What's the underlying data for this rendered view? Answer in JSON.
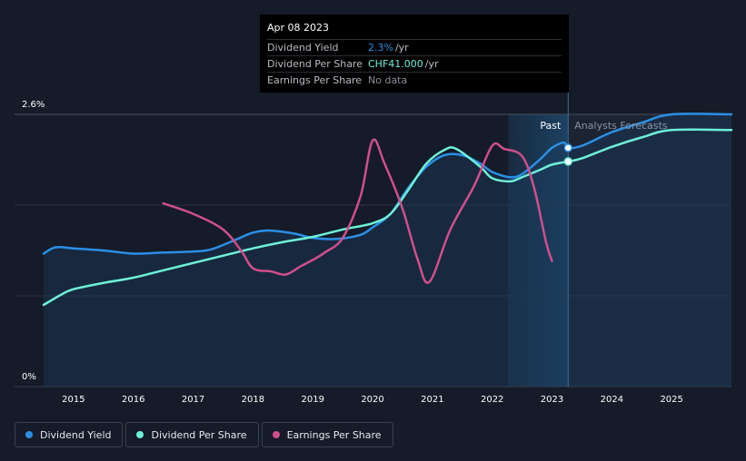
{
  "tooltip": {
    "date": "Apr 08 2023",
    "rows": [
      {
        "label": "Dividend Yield",
        "value": "2.3%",
        "unit": "/yr",
        "color": "#2b8fe6"
      },
      {
        "label": "Dividend Per Share",
        "value": "CHF41.000",
        "unit": "/yr",
        "color": "#6ef0d8"
      },
      {
        "label": "Earnings Per Share",
        "value": "No data",
        "unit": "",
        "color": "#8a8f98"
      }
    ]
  },
  "regions": {
    "past_label": "Past",
    "forecast_label": "Analysts Forecasts"
  },
  "legend": [
    {
      "label": "Dividend Yield",
      "color": "#2b8fe6"
    },
    {
      "label": "Dividend Per Share",
      "color": "#6ef0d8"
    },
    {
      "label": "Earnings Per Share",
      "color": "#d04e8c"
    }
  ],
  "chart_data": {
    "type": "line",
    "title": "",
    "xlabel": "",
    "ylabel": "",
    "y_unit": "%",
    "ylim": [
      0,
      2.6
    ],
    "xlim": [
      2014.5,
      2026.0
    ],
    "y_tick_labels": [
      {
        "value": 2.6,
        "label": "2.6%"
      },
      {
        "value": 0,
        "label": "0%"
      }
    ],
    "x_ticks": [
      2015,
      2016,
      2017,
      2018,
      2019,
      2020,
      2021,
      2022,
      2023,
      2024,
      2025
    ],
    "grid": true,
    "legend_position": "bottom-left",
    "past_until": 2023.27,
    "highlight_from": 2022.27,
    "series": [
      {
        "name": "Dividend Yield",
        "color": "#2b8fe6",
        "points": [
          [
            2014.5,
            1.27
          ],
          [
            2014.7,
            1.33
          ],
          [
            2015.0,
            1.32
          ],
          [
            2015.5,
            1.3
          ],
          [
            2016.0,
            1.27
          ],
          [
            2016.5,
            1.28
          ],
          [
            2017.0,
            1.29
          ],
          [
            2017.3,
            1.31
          ],
          [
            2017.7,
            1.4
          ],
          [
            2018.0,
            1.47
          ],
          [
            2018.3,
            1.49
          ],
          [
            2018.7,
            1.46
          ],
          [
            2019.0,
            1.42
          ],
          [
            2019.4,
            1.41
          ],
          [
            2019.8,
            1.45
          ],
          [
            2020.0,
            1.52
          ],
          [
            2020.3,
            1.65
          ],
          [
            2020.6,
            1.9
          ],
          [
            2020.9,
            2.1
          ],
          [
            2021.2,
            2.21
          ],
          [
            2021.5,
            2.21
          ],
          [
            2021.8,
            2.13
          ],
          [
            2022.0,
            2.05
          ],
          [
            2022.3,
            2.0
          ],
          [
            2022.5,
            2.03
          ],
          [
            2022.8,
            2.17
          ],
          [
            2023.0,
            2.28
          ],
          [
            2023.2,
            2.33
          ],
          [
            2023.27,
            2.28
          ],
          [
            2023.5,
            2.3
          ],
          [
            2024.0,
            2.43
          ],
          [
            2024.5,
            2.52
          ],
          [
            2025.0,
            2.6
          ],
          [
            2026.0,
            2.6
          ]
        ]
      },
      {
        "name": "Dividend Per Share",
        "color": "#6ef0d8",
        "points": [
          [
            2014.5,
            0.78
          ],
          [
            2014.8,
            0.88
          ],
          [
            2015.0,
            0.93
          ],
          [
            2015.5,
            0.99
          ],
          [
            2016.0,
            1.04
          ],
          [
            2016.5,
            1.11
          ],
          [
            2017.0,
            1.18
          ],
          [
            2017.5,
            1.25
          ],
          [
            2018.0,
            1.32
          ],
          [
            2018.5,
            1.38
          ],
          [
            2019.0,
            1.43
          ],
          [
            2019.5,
            1.5
          ],
          [
            2020.0,
            1.56
          ],
          [
            2020.3,
            1.65
          ],
          [
            2020.6,
            1.88
          ],
          [
            2020.9,
            2.13
          ],
          [
            2021.2,
            2.26
          ],
          [
            2021.4,
            2.27
          ],
          [
            2021.8,
            2.1
          ],
          [
            2022.0,
            1.99
          ],
          [
            2022.3,
            1.96
          ],
          [
            2022.5,
            2.0
          ],
          [
            2022.8,
            2.07
          ],
          [
            2023.0,
            2.12
          ],
          [
            2023.27,
            2.15
          ],
          [
            2023.5,
            2.18
          ],
          [
            2024.0,
            2.29
          ],
          [
            2024.5,
            2.38
          ],
          [
            2025.0,
            2.45
          ],
          [
            2026.0,
            2.45
          ]
        ]
      },
      {
        "name": "Earnings Per Share",
        "color": "#d04e8c",
        "points": [
          [
            2016.5,
            1.75
          ],
          [
            2017.0,
            1.65
          ],
          [
            2017.5,
            1.5
          ],
          [
            2017.8,
            1.3
          ],
          [
            2018.0,
            1.13
          ],
          [
            2018.3,
            1.1
          ],
          [
            2018.55,
            1.07
          ],
          [
            2018.8,
            1.15
          ],
          [
            2019.0,
            1.21
          ],
          [
            2019.2,
            1.28
          ],
          [
            2019.5,
            1.42
          ],
          [
            2019.8,
            1.82
          ],
          [
            2020.0,
            2.35
          ],
          [
            2020.2,
            2.13
          ],
          [
            2020.5,
            1.7
          ],
          [
            2020.75,
            1.22
          ],
          [
            2020.95,
            1.0
          ],
          [
            2021.3,
            1.5
          ],
          [
            2021.7,
            1.92
          ],
          [
            2022.0,
            2.3
          ],
          [
            2022.2,
            2.27
          ],
          [
            2022.5,
            2.2
          ],
          [
            2022.7,
            1.9
          ],
          [
            2022.9,
            1.38
          ],
          [
            2023.0,
            1.2
          ]
        ]
      }
    ],
    "markers": [
      {
        "series": "Dividend Yield",
        "x": 2023.27,
        "y": 2.28
      },
      {
        "series": "Dividend Per Share",
        "x": 2023.27,
        "y": 2.15
      }
    ]
  }
}
